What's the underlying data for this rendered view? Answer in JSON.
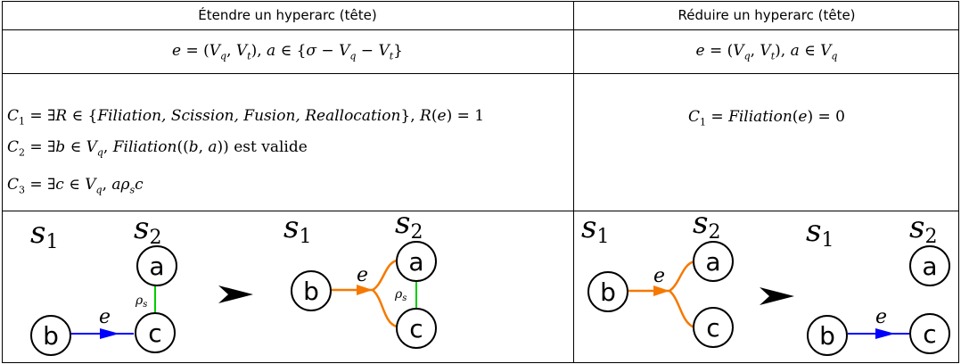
{
  "columns": [
    {
      "header": "Étendre un hyperarc  (tête)",
      "definition": {
        "lhs": "e = (V",
        "q": "q",
        "sep": ", V",
        "t": "t",
        "rhs": "), a ∈ {σ − V",
        "q2": "q",
        "minus": " − V",
        "t2": "t",
        "end": "}"
      },
      "conditions": [
        {
          "label": "C",
          "idx": "1",
          "text": " = ∃R ∈ {",
          "italic": "Filiation, Scission, Fusion, Reallocation",
          "tail": "}, R(e) = 1"
        },
        {
          "label": "C",
          "idx": "2",
          "text": " = ∃b ∈ V",
          "sub": "q",
          "italic": "Filiation",
          "tail": "((b, a)) est valide"
        },
        {
          "label": "C",
          "idx": "3",
          "text": " = ∃c ∈ V",
          "sub": "q",
          "tail2": ", aρ",
          "sub2": "s",
          "end": "c"
        }
      ]
    },
    {
      "header": "Réduire un hyperarc (tête)",
      "definition": {
        "lhs": "e = (V",
        "q": "q",
        "sep": ", V",
        "t": "t",
        "rhs": "), a ∈ V",
        "q2": "q"
      },
      "conditions": [
        {
          "label": "C",
          "idx": "1",
          "text": " = ",
          "italic": "Filiation",
          "tail": "(e) = 0"
        }
      ]
    }
  ],
  "diagram_labels": {
    "s1": "s",
    "s1_idx": "1",
    "s2": "s",
    "s2_idx": "2",
    "node_a": "a",
    "node_b": "b",
    "node_c": "c",
    "edge": "e",
    "rho": "ρ",
    "rho_idx": "s"
  },
  "colors": {
    "blue_edge": "#0000ff",
    "orange_edge": "#f57900",
    "green_relation": "#00cc00",
    "arrow": "#000000"
  }
}
